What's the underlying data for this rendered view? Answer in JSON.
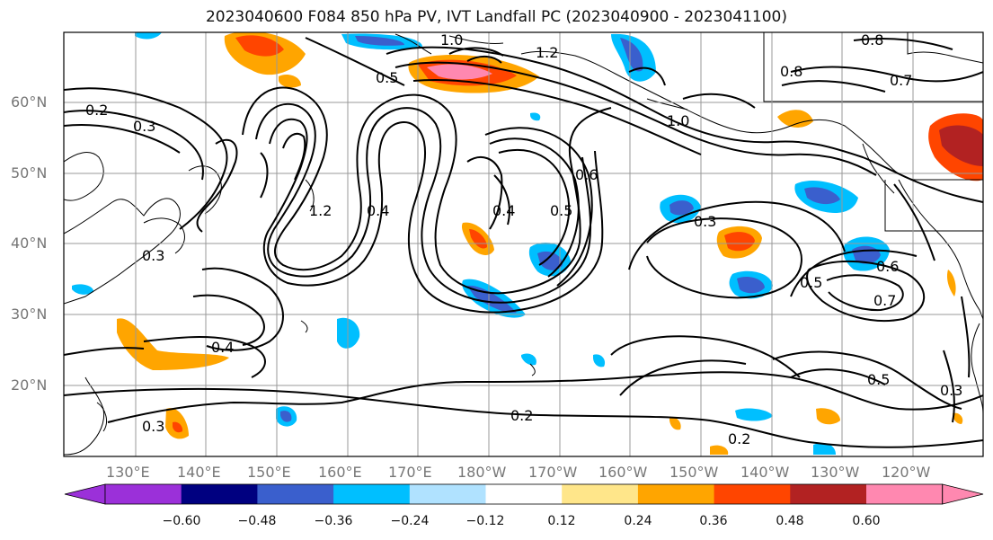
{
  "title": "2023040600 F084 850 hPa PV, IVT Landfall PC (2023040900 - 2023041100)",
  "lat_labels": [
    "60°N",
    "50°N",
    "40°N",
    "30°N",
    "20°N"
  ],
  "lon_labels": [
    "130°E",
    "140°E",
    "150°E",
    "160°E",
    "170°E",
    "180°W",
    "170°W",
    "160°W",
    "150°W",
    "140°W",
    "130°W",
    "120°W"
  ],
  "colorbar": {
    "ticks": [
      "−0.60",
      "−0.48",
      "−0.36",
      "−0.24",
      "−0.12",
      "0.12",
      "0.24",
      "0.36",
      "0.48",
      "0.60"
    ],
    "colors": [
      "#9b30d9",
      "#000080",
      "#3a5fcd",
      "#00bfff",
      "#b0e2ff",
      "#ffffff",
      "#ffe68a",
      "#ffa500",
      "#ff4500",
      "#b22222",
      "#ff88b0"
    ]
  },
  "contour_labels": [
    "0.2",
    "0.2",
    "0.3",
    "0.3",
    "0.3",
    "0.5",
    "0.5",
    "0.7",
    "0.6",
    "0.8",
    "1.0",
    "1.2",
    "0.4",
    "0.4",
    "0.5",
    "0.7",
    "0.6",
    "0.3",
    "0.8",
    "1.0",
    "1.2",
    "0.5",
    "0.4",
    "0.2",
    "0.3"
  ],
  "colors": {
    "contour": "#000000",
    "grid": "#999999",
    "coast": "#000000"
  }
}
